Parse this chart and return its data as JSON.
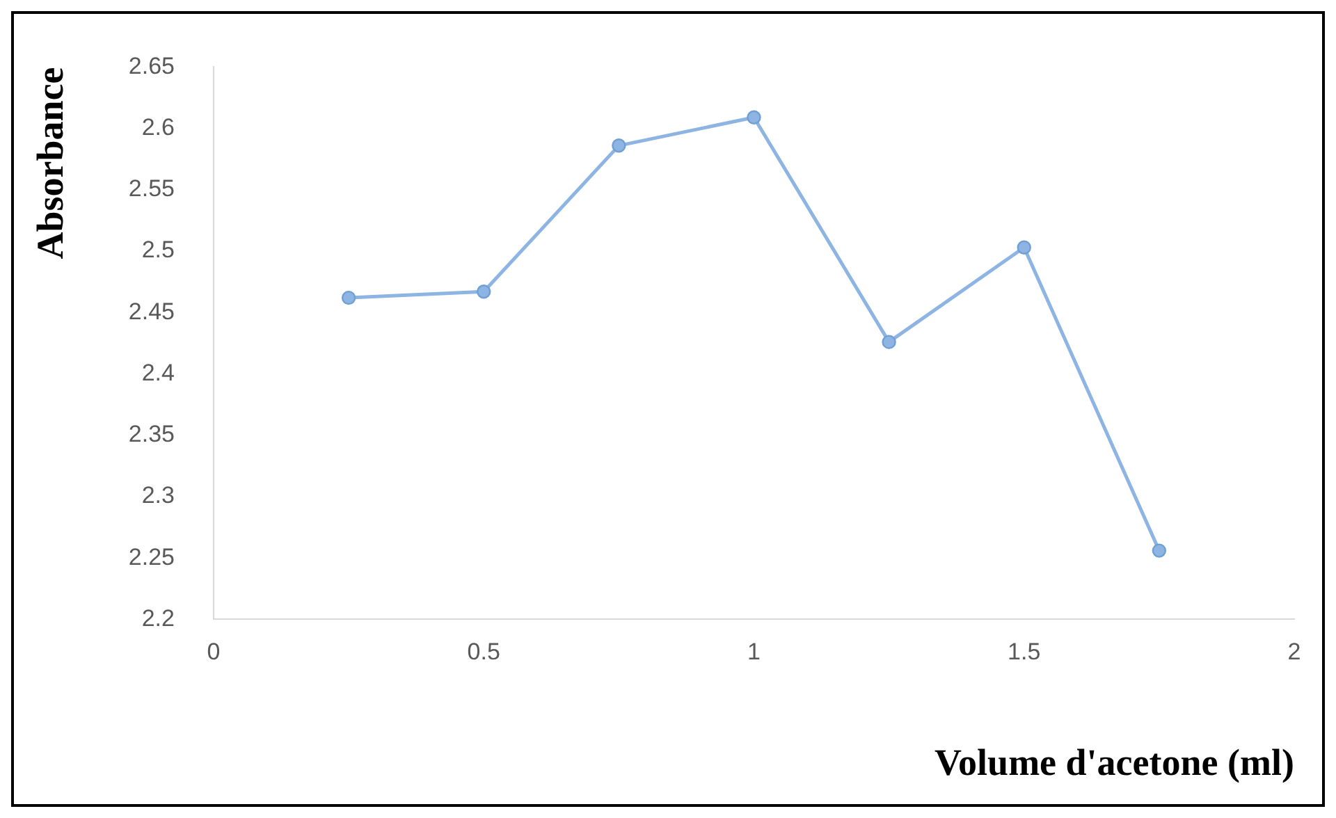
{
  "chart_data": {
    "type": "line",
    "xlabel": "Volume d'acetone (ml)",
    "ylabel": "Absorbance",
    "x": [
      0.25,
      0.5,
      0.75,
      1,
      1.25,
      1.5,
      1.75
    ],
    "series": [
      {
        "color": "#8db4e2",
        "values": [
          2.462,
          2.467,
          2.586,
          2.609,
          2.426,
          2.503,
          2.256
        ]
      }
    ],
    "xlim": [
      0,
      2
    ],
    "xticks": [
      0,
      0.5,
      1,
      1.5,
      2
    ],
    "ylim": [
      2.2,
      2.65
    ],
    "yticks": [
      2.2,
      2.25,
      2.3,
      2.35,
      2.4,
      2.45,
      2.5,
      2.55,
      2.6,
      2.65
    ],
    "grid": false,
    "legend": false,
    "marker": "circle",
    "line_style": "solid"
  }
}
